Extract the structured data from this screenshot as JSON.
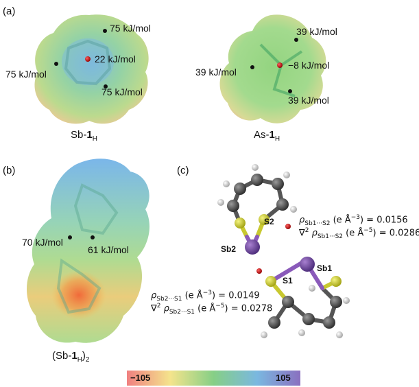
{
  "panels": {
    "a_label": "(a)",
    "b_label": "(b)",
    "c_label": "(c)"
  },
  "panel_a": {
    "sb": {
      "caption_prefix": "Sb-",
      "caption_bold": "1",
      "caption_sub": "H",
      "top_right": "75 kJ/mol",
      "center": "22 kJ/mol",
      "left": "75 kJ/mol",
      "bottom_right": "75 kJ/mol"
    },
    "as": {
      "caption_prefix": "As-",
      "caption_bold": "1",
      "caption_sub": "H",
      "top_right": "39 kJ/mol",
      "center": "−8 kJ/mol",
      "left": "39 kJ/mol",
      "bottom_right": "39 kJ/mol"
    }
  },
  "panel_b": {
    "left_value": "70 kJ/mol",
    "right_value": "61 kJ/mol",
    "caption_open": "(Sb-",
    "caption_bold": "1",
    "caption_sub": "H",
    "caption_close": ")",
    "caption_sub2": "2"
  },
  "panel_c": {
    "atoms": {
      "s2": "S2",
      "sb2": "Sb2",
      "sb1": "Sb1",
      "s1": "S1"
    },
    "upper": {
      "rho_sym": "ρ",
      "rho_sub": "Sb1···S2",
      "rho_unit": " (e Å",
      "rho_exp": "−3",
      "rho_val": ") = 0.0156",
      "lap_sym": "∇",
      "lap_sup": "2",
      "lap_rho": " ρ",
      "lap_sub": "Sb1···S2",
      "lap_unit": " (e Å",
      "lap_exp": "−5",
      "lap_val": ") = 0.0286"
    },
    "lower": {
      "rho_sym": "ρ",
      "rho_sub": "Sb2···S1",
      "rho_unit": " (e Å",
      "rho_exp": "−3",
      "rho_val": ") = 0.0149",
      "lap_sym": "∇",
      "lap_sup": "2",
      "lap_rho": " ρ",
      "lap_sub": "Sb2···S1",
      "lap_unit": " (e Å",
      "lap_exp": "−5",
      "lap_val": ") = 0.0278"
    }
  },
  "colorbar": {
    "min_label": "−105",
    "max_label": "105",
    "colors": [
      "#f08080",
      "#f4e48c",
      "#86cf86",
      "#7ab8e0",
      "#8a70c0"
    ]
  }
}
